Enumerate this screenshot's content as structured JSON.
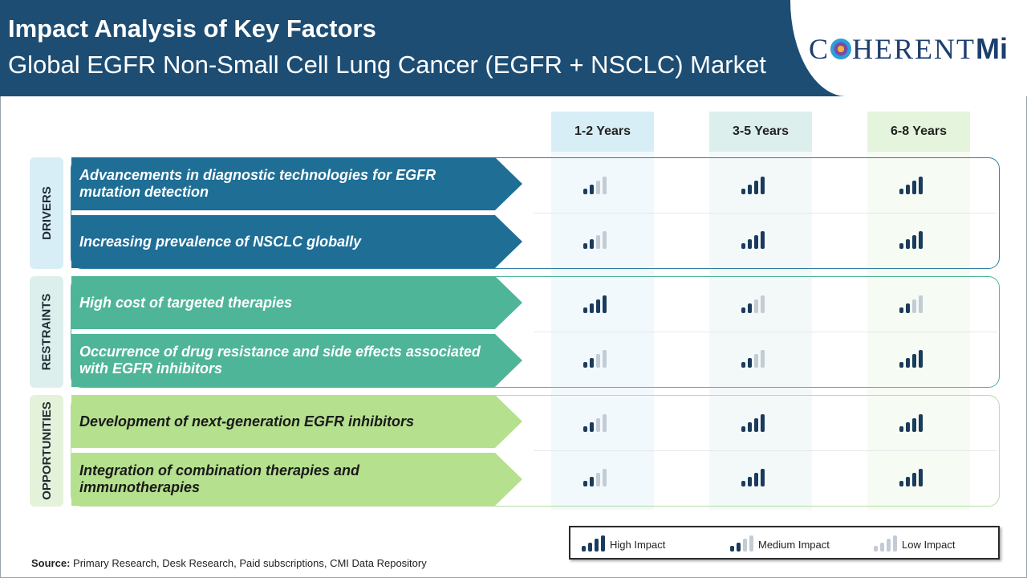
{
  "header": {
    "title": "Impact Analysis of Key Factors",
    "subtitle": "Global EGFR Non-Small Cell Lung Cancer (EGFR + NSCLC) Market",
    "logo_text_main": "C",
    "logo_text_rest": "HERENT",
    "logo_text_mi": "Mi"
  },
  "columns": [
    "1-2 Years",
    "3-5 Years",
    "6-8 Years"
  ],
  "groups": [
    {
      "label": "DRIVERS",
      "factors": [
        {
          "text": "Advancements in diagnostic technologies for EGFR mutation detection",
          "impact": [
            "medium",
            "high",
            "high"
          ]
        },
        {
          "text": "Increasing prevalence of NSCLC globally",
          "impact": [
            "medium",
            "high",
            "high"
          ]
        }
      ]
    },
    {
      "label": "RESTRAINTS",
      "factors": [
        {
          "text": "High cost of targeted therapies",
          "impact": [
            "high",
            "medium",
            "medium"
          ]
        },
        {
          "text": " Occurrence of drug resistance and side effects associated with EGFR inhibitors",
          "impact": [
            "medium",
            "medium",
            "high"
          ]
        }
      ]
    },
    {
      "label": "OPPORTUNITIES",
      "factors": [
        {
          "text": "Development of next-generation EGFR inhibitors",
          "impact": [
            "medium",
            "high",
            "high"
          ]
        },
        {
          "text": "Integration of combination therapies and immunotherapies",
          "impact": [
            "medium",
            "high",
            "high"
          ]
        }
      ]
    }
  ],
  "legend": {
    "high": "High Impact",
    "medium": "Medium Impact",
    "low": "Low Impact"
  },
  "source": {
    "label": "Source:",
    "text": " Primary Research, Desk Research, Paid subscriptions, CMI Data Repository"
  },
  "colors": {
    "header_bg": "#1d4d73",
    "drivers": "#1e6e96",
    "restraints": "#4fb598",
    "opportunities": "#b5e08e",
    "bar_active": "#1b3b5c",
    "bar_inactive": "#c3ccd4"
  }
}
